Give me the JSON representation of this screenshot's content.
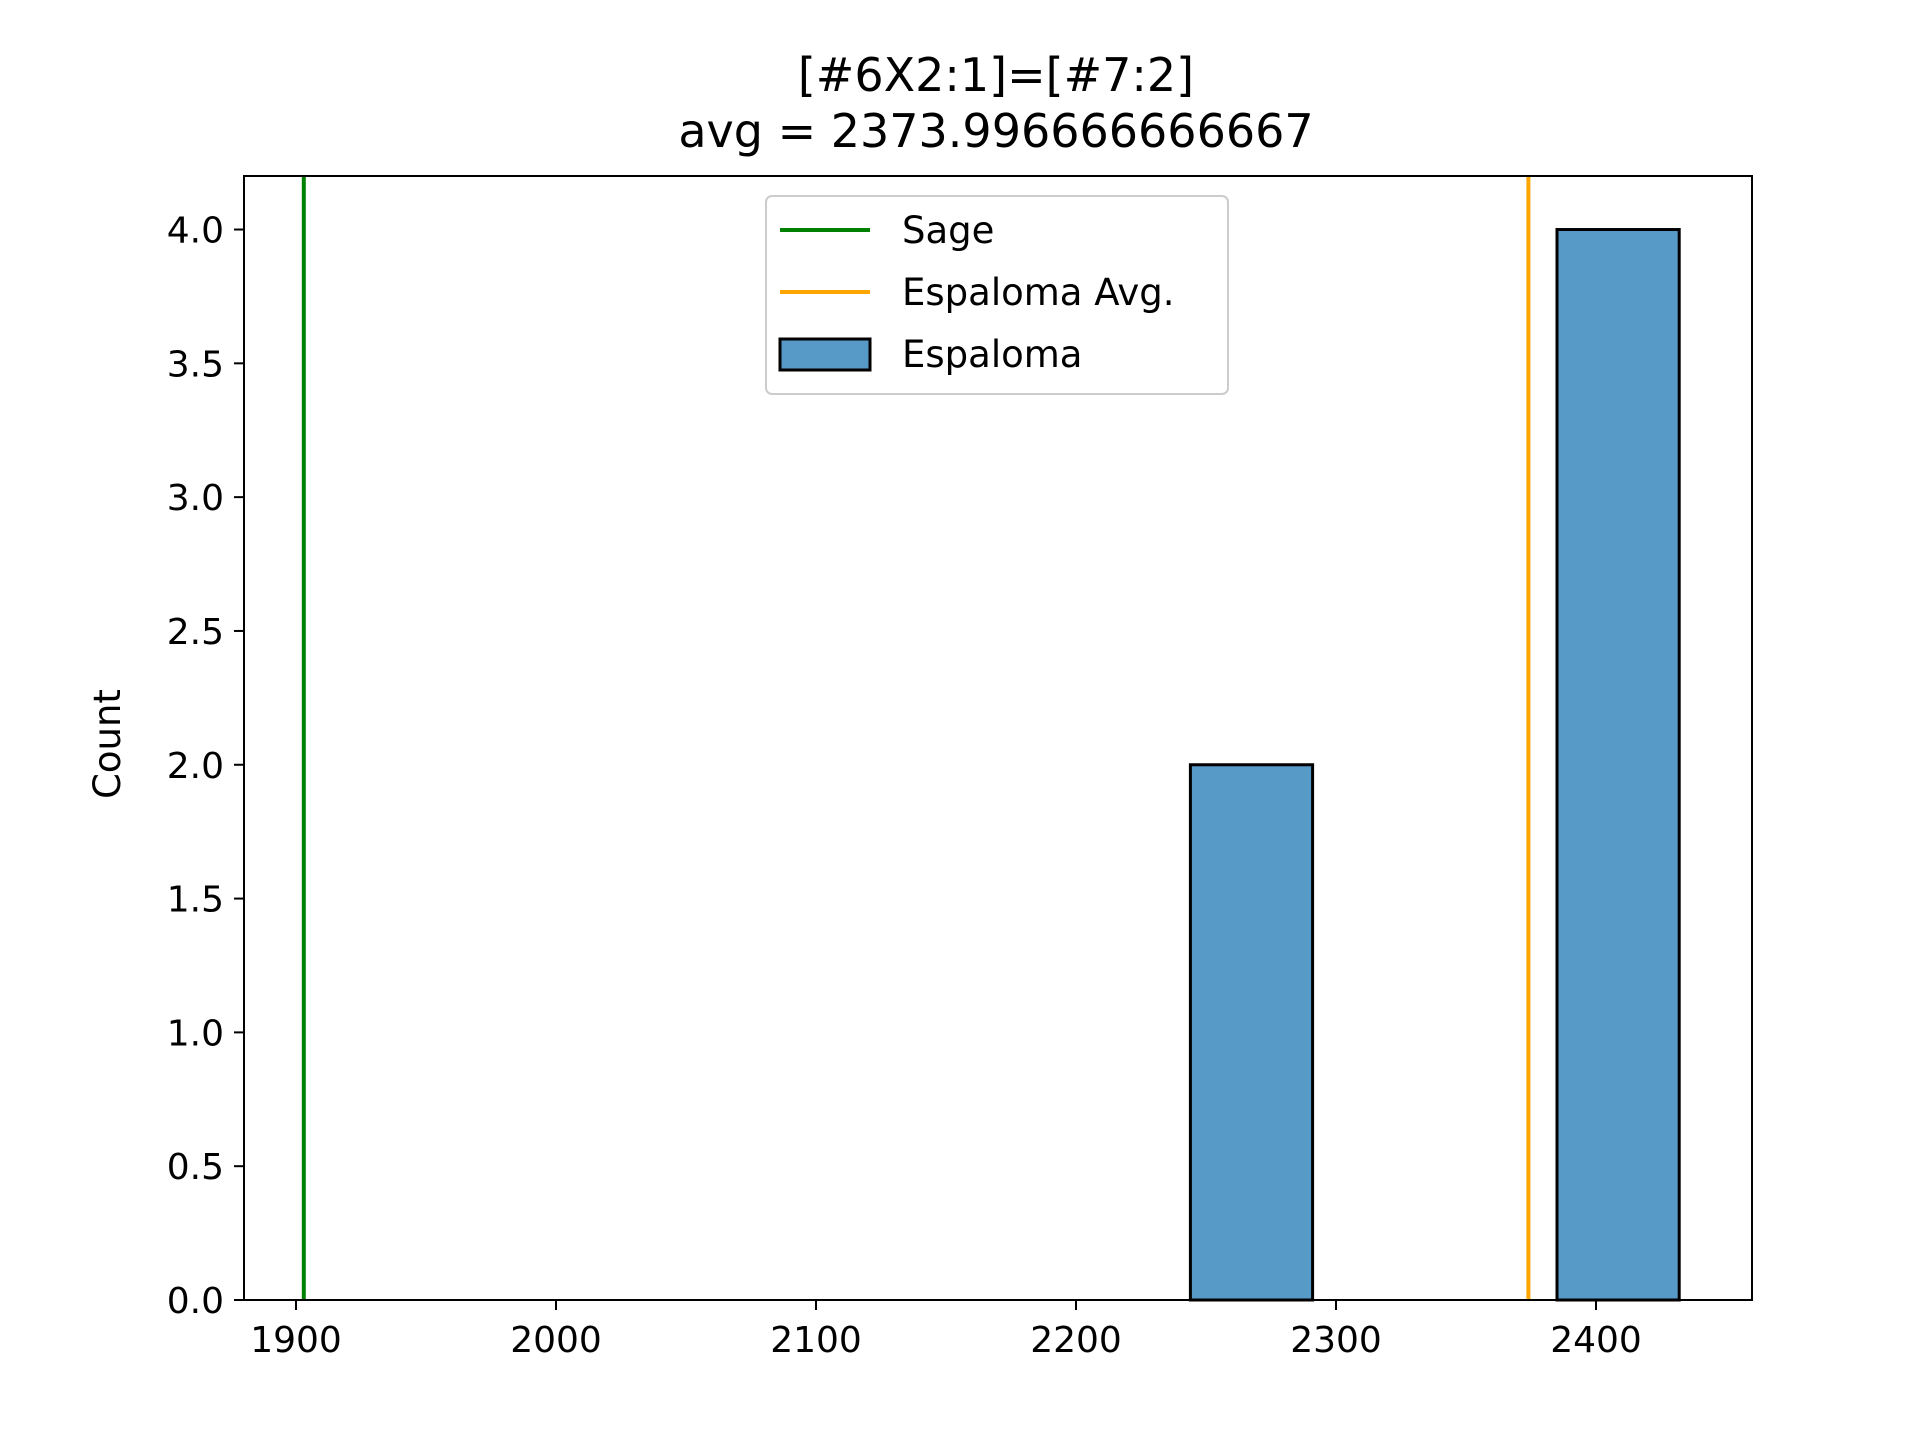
{
  "chart_data": {
    "type": "bar",
    "title": "[#6X2:1]=[#7:2]",
    "subtitle": "avg = 2373.996666666667",
    "xlabel": "",
    "ylabel": "Count",
    "xlim": [
      1880,
      2460
    ],
    "ylim": [
      0,
      4.2
    ],
    "x_ticks": [
      {
        "value": 1900,
        "label": "1900"
      },
      {
        "value": 2000,
        "label": "2000"
      },
      {
        "value": 2100,
        "label": "2100"
      },
      {
        "value": 2200,
        "label": "2200"
      },
      {
        "value": 2300,
        "label": "2300"
      },
      {
        "value": 2400,
        "label": "2400"
      }
    ],
    "y_ticks": [
      {
        "value": 0.0,
        "label": "0.0"
      },
      {
        "value": 0.5,
        "label": "0.5"
      },
      {
        "value": 1.0,
        "label": "1.0"
      },
      {
        "value": 1.5,
        "label": "1.5"
      },
      {
        "value": 2.0,
        "label": "2.0"
      },
      {
        "value": 2.5,
        "label": "2.5"
      },
      {
        "value": 3.0,
        "label": "3.0"
      },
      {
        "value": 3.5,
        "label": "3.5"
      },
      {
        "value": 4.0,
        "label": "4.0"
      }
    ],
    "grid": false,
    "legend_position": "upper-center",
    "histogram": {
      "name": "Espaloma",
      "color": "#5799c7",
      "edge_color": "#000000",
      "bins": [
        {
          "x0": 2244,
          "x1": 2291,
          "count": 2
        },
        {
          "x0": 2291,
          "x1": 2338,
          "count": 0
        },
        {
          "x0": 2338,
          "x1": 2385,
          "count": 0
        },
        {
          "x0": 2385,
          "x1": 2432,
          "count": 4
        }
      ]
    },
    "vlines": [
      {
        "name": "Sage",
        "x": 1903,
        "color": "#008000"
      },
      {
        "name": "Espaloma Avg.",
        "x": 2374,
        "color": "#ffa500"
      }
    ],
    "legend": [
      {
        "label": "Sage",
        "kind": "line",
        "color": "#008000"
      },
      {
        "label": "Espaloma Avg.",
        "kind": "line",
        "color": "#ffa500"
      },
      {
        "label": "Espaloma",
        "kind": "patch",
        "color": "#5799c7"
      }
    ]
  }
}
